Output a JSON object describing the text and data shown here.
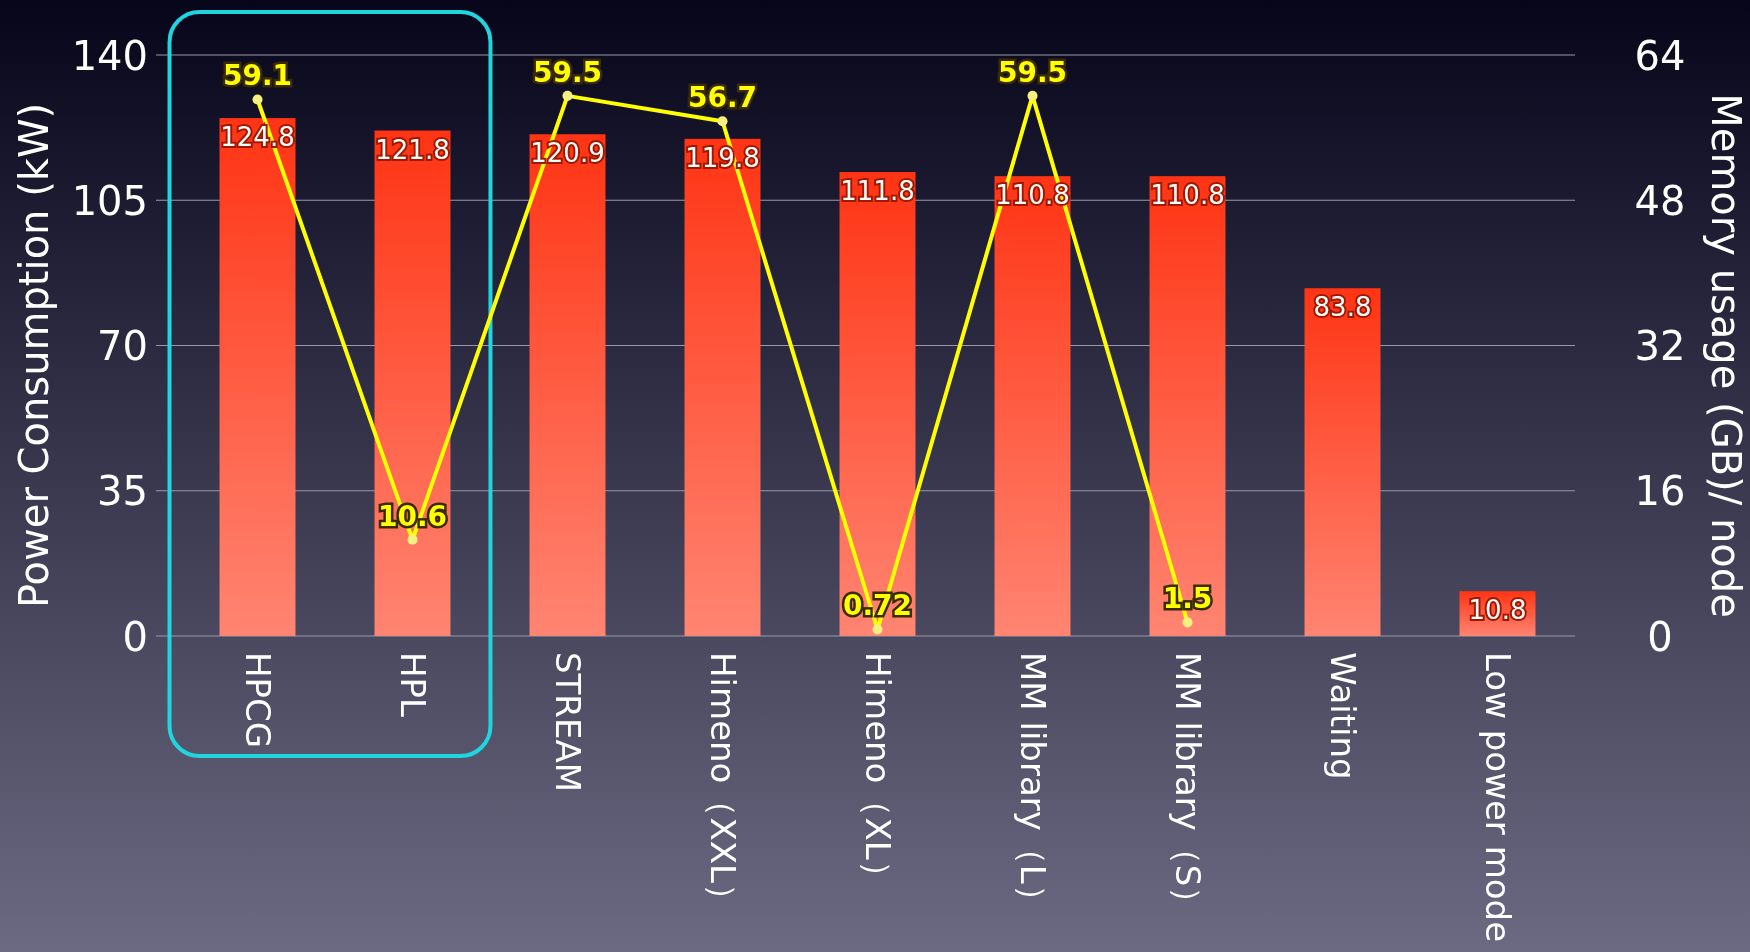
{
  "chart_data": {
    "type": "bar",
    "ylabel": "Power Consumption (kW)",
    "y2label": "Memory usage (GB)/ node",
    "categories": [
      "HPCG",
      "HPL",
      "STREAM",
      "Himeno（XXL）",
      "Himeno（XL）",
      "MM library（L）",
      "MM library（S）",
      "Waiting",
      "Low power mode"
    ],
    "series": [
      {
        "color": "#ff3414",
        "values": [
          124.8,
          121.8,
          120.9,
          119.8,
          111.8,
          110.8,
          110.8,
          83.8,
          10.8
        ]
      },
      {
        "type": "line",
        "axis": "y2",
        "color": "#ffff00",
        "values": [
          59.1,
          10.6,
          59.5,
          56.7,
          0.72,
          59.5,
          1.5,
          null,
          null
        ]
      }
    ],
    "ylim": [
      0,
      140
    ],
    "yticks": [
      0,
      35,
      70,
      105,
      140
    ],
    "y2lim": [
      0,
      64
    ],
    "y2ticks": [
      0,
      16,
      32,
      48,
      64
    ],
    "grid": "y",
    "data_labels": true,
    "marker": "circle",
    "line_style": "solid"
  }
}
